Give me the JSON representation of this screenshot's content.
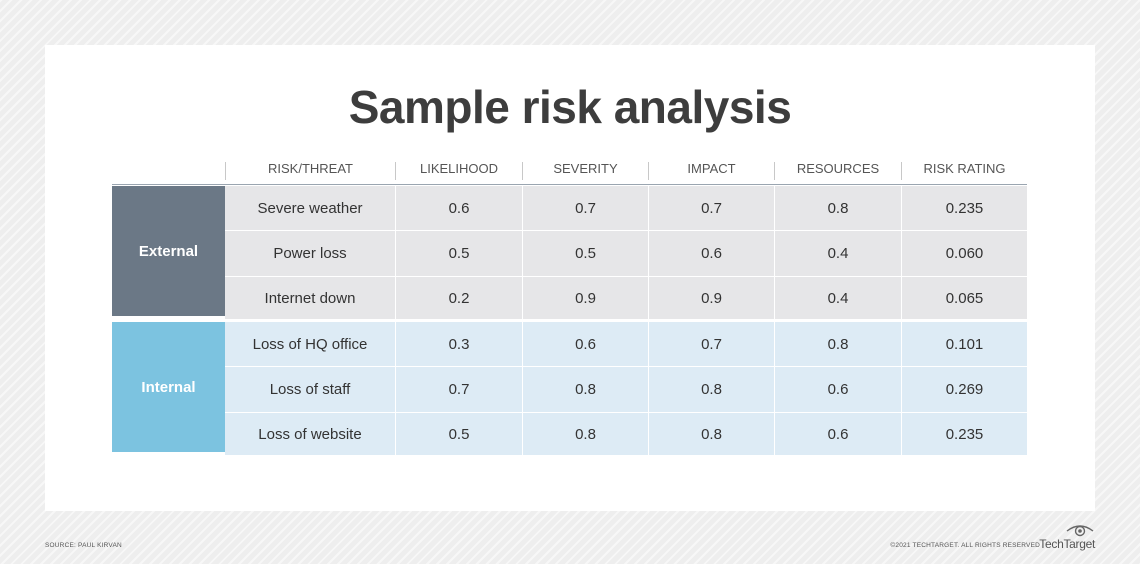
{
  "title": "Sample risk analysis",
  "columns": [
    "RISK/THREAT",
    "LIKELIHOOD",
    "SEVERITY",
    "IMPACT",
    "RESOURCES",
    "RISK RATING"
  ],
  "groups": [
    {
      "label": "External",
      "color": "#6b7886",
      "rows": [
        [
          "Severe weather",
          "0.6",
          "0.7",
          "0.7",
          "0.8",
          "0.235"
        ],
        [
          "Power loss",
          "0.5",
          "0.5",
          "0.6",
          "0.4",
          "0.060"
        ],
        [
          "Internet down",
          "0.2",
          "0.9",
          "0.9",
          "0.4",
          "0.065"
        ]
      ]
    },
    {
      "label": "Internal",
      "color": "#7cc3e0",
      "rows": [
        [
          "Loss of HQ office",
          "0.3",
          "0.6",
          "0.7",
          "0.8",
          "0.101"
        ],
        [
          "Loss of staff",
          "0.7",
          "0.8",
          "0.8",
          "0.6",
          "0.269"
        ],
        [
          "Loss of website",
          "0.5",
          "0.8",
          "0.8",
          "0.6",
          "0.235"
        ]
      ]
    }
  ],
  "footer": {
    "source": "SOURCE: PAUL KIRVAN",
    "copyright": "©2021 TECHTARGET. ALL RIGHTS RESERVED",
    "brand": "TechTarget"
  }
}
